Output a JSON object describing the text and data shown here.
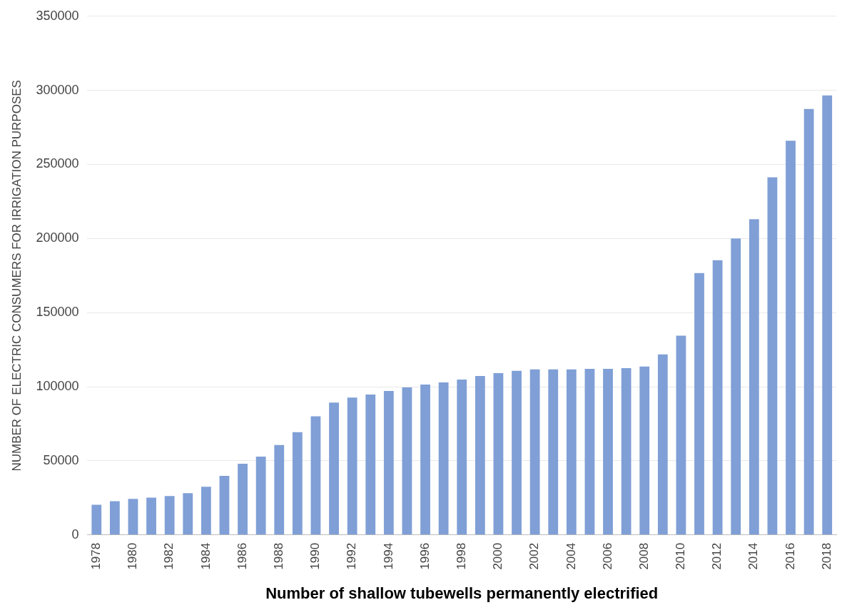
{
  "chart_data": {
    "type": "bar",
    "xlabel": "Number of shallow tubewells permanently electrified",
    "ylabel": "NUMBER OF ELECTRIC CONSUMERS FOR IRRIGATION PURPOSES",
    "categories": [
      "1978",
      null,
      "1980",
      null,
      "1982",
      null,
      "1984",
      null,
      "1986",
      null,
      "1988",
      null,
      "1990",
      null,
      "1992",
      null,
      "1994",
      null,
      "1996",
      null,
      "1998",
      null,
      "2000",
      null,
      "2002",
      null,
      "2004",
      null,
      "2006",
      null,
      "2008",
      null,
      "2010",
      null,
      "2012",
      null,
      "2014",
      null,
      "2016",
      null,
      "2018"
    ],
    "values": [
      20400,
      22800,
      24300,
      25200,
      26200,
      28200,
      32500,
      39800,
      48000,
      52900,
      60700,
      69400,
      80100,
      89300,
      92700,
      94700,
      97100,
      99500,
      101500,
      102900,
      104900,
      107300,
      109200,
      110700,
      111700,
      111700,
      111700,
      112100,
      112100,
      112600,
      113600,
      121800,
      134500,
      176700,
      185400,
      200000,
      213100,
      241300,
      266000,
      287400,
      296600
    ],
    "color": "#7f9fd6",
    "ylim": [
      0,
      350000
    ],
    "yticks": [
      0,
      50000,
      100000,
      150000,
      200000,
      250000,
      300000,
      350000
    ],
    "grid": "y",
    "legend": false
  }
}
